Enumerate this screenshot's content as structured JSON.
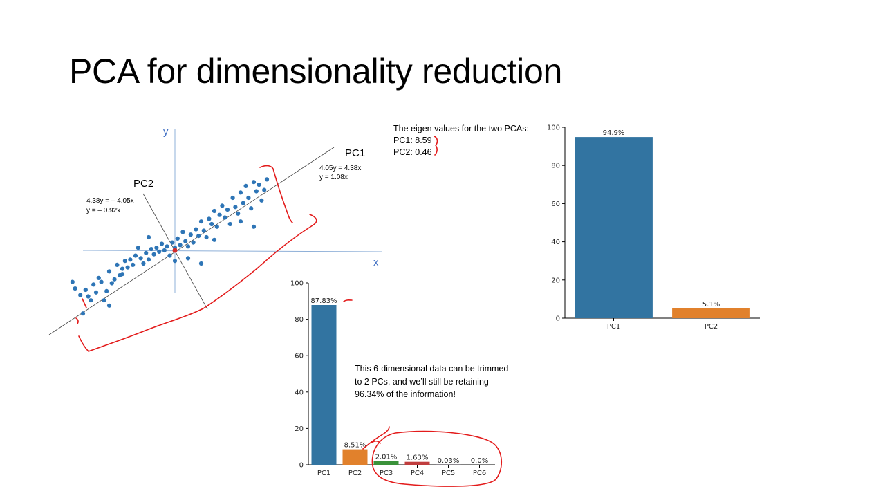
{
  "slide": {
    "title": "PCA for dimensionality reduction"
  },
  "eigen_text": {
    "heading": "The eigen values for the two PCAs:",
    "pc1": "PC1: 8.59",
    "pc2": "PC2: 0.46"
  },
  "note": {
    "text": "This 6-dimensional data can be trimmed to 2 PCs, and we’ll still be retaining 96.34% of the information!"
  },
  "scatter": {
    "x_label": "x",
    "y_label": "y",
    "pc1_label": "PC1",
    "pc2_label": "PC2",
    "pc1_eq_line1": "4.05y = 4.38x",
    "pc1_eq_line2": "y = 1.08x",
    "pc2_eq_line1": "4.38y = – 4.05x",
    "pc2_eq_line2": "y = – 0.92x"
  },
  "colors": {
    "blue": "#2e75b6",
    "bar_blue": "#3274a1",
    "bar_orange": "#e1812c",
    "bar_green": "#3a923a",
    "bar_red": "#c03d3e",
    "annotation_red": "#e31b1b",
    "axis_blue": "#4472c4"
  },
  "chart_data": [
    {
      "type": "scatter",
      "series": [
        {
          "x": [
            -3.9,
            -3.8,
            -3.6,
            -3.4,
            -3.3,
            -3.2,
            -3.1,
            -3.0,
            -2.9,
            -2.8,
            -2.7,
            -2.6,
            -2.5,
            -2.4,
            -2.3,
            -2.2,
            -2.1,
            -2.0,
            -1.9,
            -1.8,
            -1.7,
            -1.6,
            -1.5,
            -1.4,
            -1.3,
            -1.2,
            -1.1,
            -1.0,
            -0.9,
            -0.8,
            -0.7,
            -0.6,
            -0.5,
            -0.4,
            -0.3,
            -0.2,
            -0.1,
            0.0,
            0.1,
            0.2,
            0.3,
            0.4,
            0.5,
            0.6,
            0.7,
            0.8,
            0.9,
            1.0,
            1.1,
            1.2,
            1.3,
            1.4,
            1.5,
            1.6,
            1.7,
            1.8,
            1.9,
            2.0,
            2.1,
            2.2,
            2.3,
            2.4,
            2.5,
            2.6,
            2.7,
            2.8,
            2.9,
            3.0,
            3.1,
            3.2,
            3.3,
            3.4,
            3.5,
            -3.5,
            -2.0,
            -1.0,
            0.5,
            1.5,
            2.5,
            3.0,
            -2.5,
            0.0,
            1.0
          ],
          "y": [
            -1.2,
            -1.45,
            -1.7,
            -1.5,
            -1.75,
            -1.9,
            -1.3,
            -1.6,
            -1.05,
            -1.2,
            -1.9,
            -1.55,
            -0.8,
            -1.25,
            -1.1,
            -0.55,
            -0.95,
            -0.7,
            -0.4,
            -0.65,
            -0.35,
            -0.55,
            -0.2,
            0.1,
            -0.3,
            -0.5,
            -0.1,
            -0.35,
            0.05,
            -0.15,
            0.1,
            -0.05,
            0.25,
            0.0,
            0.15,
            -0.2,
            0.3,
            0.1,
            0.45,
            0.2,
            0.7,
            0.35,
            0.15,
            0.6,
            0.3,
            0.8,
            0.55,
            1.1,
            0.75,
            0.5,
            1.2,
            1.0,
            1.5,
            0.9,
            1.35,
            1.7,
            1.25,
            1.55,
            1.0,
            2.0,
            1.65,
            1.4,
            2.2,
            1.8,
            2.45,
            2.0,
            1.6,
            2.6,
            2.25,
            2.5,
            1.9,
            2.3,
            2.7,
            -2.4,
            -0.9,
            0.5,
            -0.3,
            0.4,
            1.1,
            0.9,
            -2.1,
            -0.4,
            -0.5
          ]
        }
      ],
      "xlabel": "x",
      "ylabel": "y",
      "lines": [
        {
          "name": "PC1",
          "equation": "y = 1.08x"
        },
        {
          "name": "PC2",
          "equation": "y = – 0.92x"
        }
      ]
    },
    {
      "type": "bar",
      "categories": [
        "PC1",
        "PC2",
        "PC3",
        "PC4",
        "PC5",
        "PC6"
      ],
      "values": [
        87.83,
        8.51,
        2.01,
        1.63,
        0.03,
        0.0
      ],
      "labels": [
        "87.83%",
        "8.51%",
        "2.01%",
        "1.63%",
        "0.03%",
        "0.0%"
      ],
      "colors": [
        "#3274a1",
        "#e1812c",
        "#3a923a",
        "#c03d3e",
        "#9372b2",
        "#845b53"
      ],
      "ylim": [
        0,
        100
      ],
      "yticks": [
        "0",
        "20",
        "40",
        "60",
        "80",
        "100"
      ]
    },
    {
      "type": "bar",
      "categories": [
        "PC1",
        "PC2"
      ],
      "values": [
        94.9,
        5.1
      ],
      "labels": [
        "94.9%",
        "5.1%"
      ],
      "colors": [
        "#3274a1",
        "#e1812c"
      ],
      "ylim": [
        0,
        100
      ],
      "yticks": [
        "0",
        "20",
        "40",
        "60",
        "80",
        "100"
      ]
    }
  ]
}
